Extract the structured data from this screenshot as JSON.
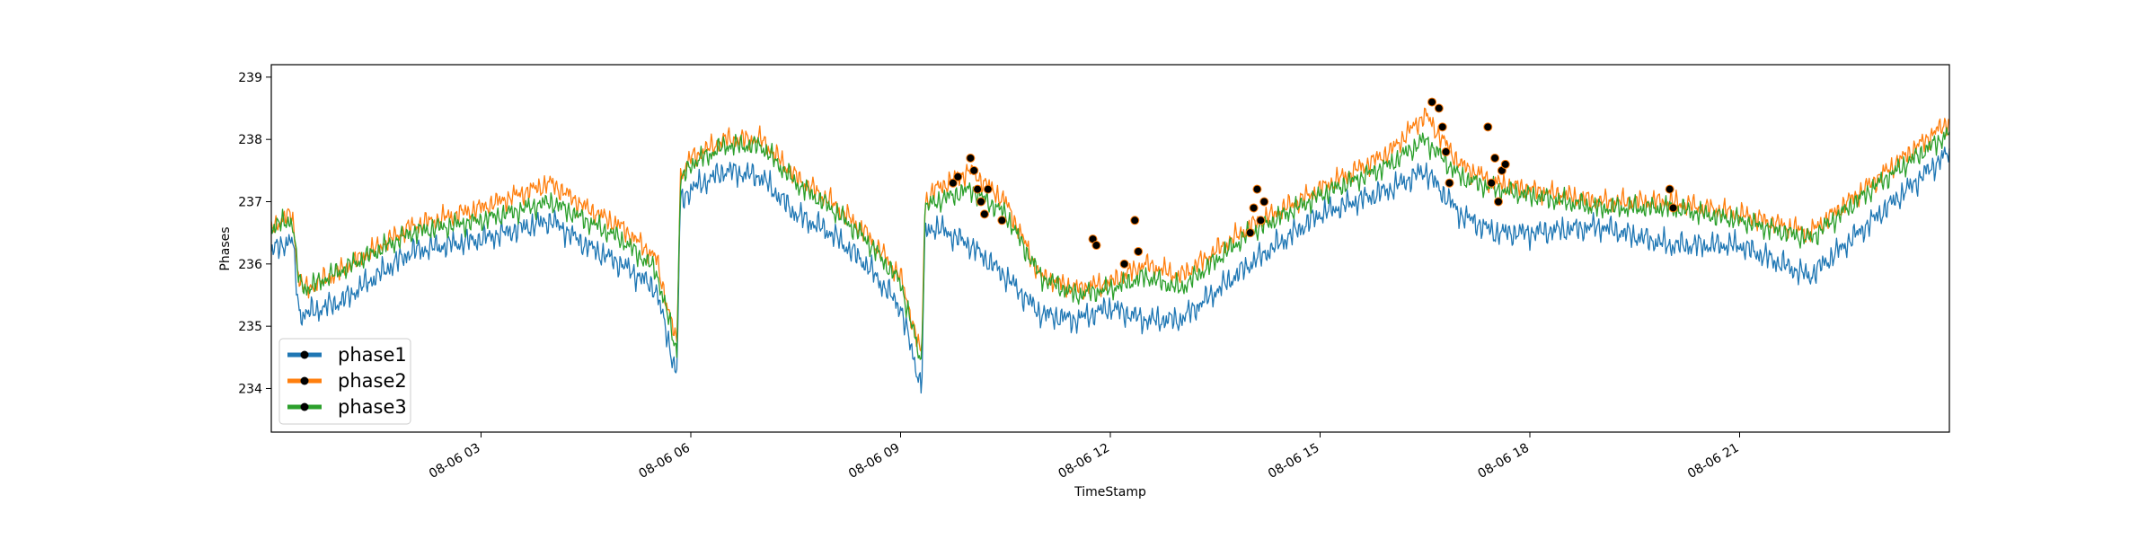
{
  "chart_data": {
    "type": "line",
    "title": "",
    "xlabel": "TimeStamp",
    "ylabel": "Phases",
    "x_range_hours": [
      0,
      24
    ],
    "ylim": [
      233.3,
      239.2
    ],
    "x_ticks": [
      {
        "label": "08-06 03",
        "hour": 3
      },
      {
        "label": "08-06 06",
        "hour": 6
      },
      {
        "label": "08-06 09",
        "hour": 9
      },
      {
        "label": "08-06 12",
        "hour": 12
      },
      {
        "label": "08-06 15",
        "hour": 15
      },
      {
        "label": "08-06 18",
        "hour": 18
      },
      {
        "label": "08-06 21",
        "hour": 21
      }
    ],
    "y_ticks": [
      234,
      235,
      236,
      237,
      238,
      239
    ],
    "grid": false,
    "legend_position": "lower-left",
    "x_hours": [
      0,
      0.3,
      0.4,
      0.5,
      1,
      2,
      3,
      4,
      4.5,
      5,
      5.5,
      5.8,
      5.85,
      6,
      6.5,
      7,
      7.5,
      8,
      8.5,
      9,
      9.3,
      9.35,
      9.5,
      10,
      10.5,
      11,
      11.5,
      12,
      12.5,
      13,
      14,
      15,
      16,
      16.5,
      17,
      17.5,
      18,
      19,
      20,
      21,
      22,
      23,
      24
    ],
    "series": [
      {
        "name": "phase1",
        "color": "#1f77b4",
        "values": [
          236.2,
          236.4,
          235.2,
          235.2,
          235.4,
          236.2,
          236.4,
          236.7,
          236.3,
          236.0,
          235.6,
          234.2,
          237.0,
          237.2,
          237.5,
          237.4,
          236.8,
          236.5,
          236.0,
          235.3,
          234.0,
          236.5,
          236.6,
          236.3,
          235.8,
          235.2,
          235.1,
          235.3,
          235.1,
          235.1,
          236.0,
          236.8,
          237.2,
          237.5,
          236.8,
          236.5,
          236.5,
          236.6,
          236.3,
          236.3,
          235.8,
          236.8,
          237.8
        ]
      },
      {
        "name": "phase2",
        "color": "#ff7f0e",
        "values": [
          236.6,
          236.8,
          235.7,
          235.6,
          235.9,
          236.6,
          236.9,
          237.3,
          236.9,
          236.6,
          236.1,
          234.7,
          237.4,
          237.7,
          238.0,
          238.0,
          237.4,
          237.0,
          236.5,
          235.8,
          234.5,
          237.0,
          237.2,
          237.5,
          237.0,
          235.8,
          235.6,
          235.7,
          236.0,
          235.8,
          236.6,
          237.2,
          237.8,
          238.4,
          237.6,
          237.3,
          237.2,
          237.0,
          237.0,
          236.8,
          236.5,
          237.4,
          238.3
        ]
      },
      {
        "name": "phase3",
        "color": "#2ca02c",
        "values": [
          236.6,
          236.7,
          235.7,
          235.6,
          235.9,
          236.5,
          236.7,
          237.0,
          236.7,
          236.4,
          235.9,
          234.6,
          237.3,
          237.6,
          237.9,
          237.9,
          237.3,
          236.9,
          236.4,
          235.7,
          234.4,
          236.9,
          237.0,
          237.2,
          236.8,
          235.8,
          235.5,
          235.6,
          235.8,
          235.6,
          236.5,
          237.1,
          237.6,
          238.0,
          237.4,
          237.2,
          237.1,
          236.9,
          236.9,
          236.7,
          236.4,
          237.3,
          238.1
        ]
      }
    ],
    "markers": [
      {
        "hour": 9.75,
        "value": 237.3
      },
      {
        "hour": 9.82,
        "value": 237.4
      },
      {
        "hour": 10.0,
        "value": 237.7
      },
      {
        "hour": 10.05,
        "value": 237.5
      },
      {
        "hour": 10.1,
        "value": 237.2
      },
      {
        "hour": 10.15,
        "value": 237.0
      },
      {
        "hour": 10.2,
        "value": 236.8
      },
      {
        "hour": 10.25,
        "value": 237.2
      },
      {
        "hour": 10.45,
        "value": 236.7
      },
      {
        "hour": 11.75,
        "value": 236.4
      },
      {
        "hour": 11.8,
        "value": 236.3
      },
      {
        "hour": 12.2,
        "value": 236.0
      },
      {
        "hour": 12.35,
        "value": 236.7
      },
      {
        "hour": 12.4,
        "value": 236.2
      },
      {
        "hour": 14.0,
        "value": 236.5
      },
      {
        "hour": 14.05,
        "value": 236.9
      },
      {
        "hour": 14.1,
        "value": 237.2
      },
      {
        "hour": 14.15,
        "value": 236.7
      },
      {
        "hour": 14.2,
        "value": 237.0
      },
      {
        "hour": 16.6,
        "value": 238.6
      },
      {
        "hour": 16.7,
        "value": 238.5
      },
      {
        "hour": 16.75,
        "value": 238.2
      },
      {
        "hour": 16.8,
        "value": 237.8
      },
      {
        "hour": 16.85,
        "value": 237.3
      },
      {
        "hour": 17.4,
        "value": 238.2
      },
      {
        "hour": 17.45,
        "value": 237.3
      },
      {
        "hour": 17.5,
        "value": 237.7
      },
      {
        "hour": 17.55,
        "value": 237.0
      },
      {
        "hour": 17.6,
        "value": 237.5
      },
      {
        "hour": 17.65,
        "value": 237.6
      },
      {
        "hour": 20.0,
        "value": 237.2
      },
      {
        "hour": 20.05,
        "value": 236.9
      }
    ]
  }
}
